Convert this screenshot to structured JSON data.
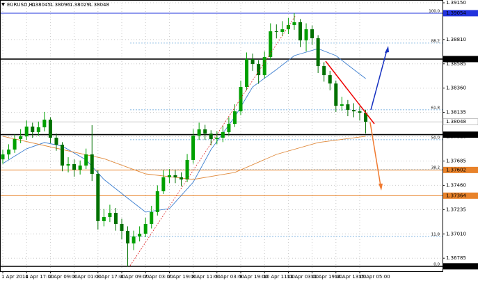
{
  "chart_data": {
    "type": "candlestick",
    "title": "EURUSD,H1",
    "header_values": [
      1.38045,
      1.38096,
      1.38029,
      1.38048
    ],
    "categories": [
      "1 Apr 2014",
      null,
      null,
      null,
      "1 Apr 17:00",
      null,
      null,
      null,
      "2 Apr 09:00",
      null,
      null,
      null,
      "3 Apr 01:00",
      null,
      null,
      null,
      "3 Apr 17:00",
      null,
      null,
      null,
      "4 Apr 09:00",
      null,
      null,
      null,
      "7 Apr 03:00",
      null,
      null,
      null,
      "7 Apr 19:00",
      null,
      null,
      null,
      "8 Apr 11:00",
      null,
      null,
      null,
      "9 Apr 03:00",
      null,
      null,
      null,
      "9 Apr 19:00",
      null,
      null,
      null,
      "10 Apr 11:00",
      null,
      null,
      null,
      "11 Apr 03:00",
      null,
      null,
      null,
      "11 Apr 19:00",
      null,
      null,
      null,
      "14 Apr 13:00",
      null,
      null,
      null,
      "15 Apr 05:00",
      null
    ],
    "open": [
      1.377,
      1.37746,
      1.37791,
      1.37888,
      1.37914,
      1.38004,
      1.37952,
      1.37997,
      1.38068,
      1.37901,
      1.37836,
      1.37643,
      1.37656,
      1.37604,
      1.37643,
      1.37746,
      1.37566,
      1.37128,
      1.37166,
      1.37205,
      1.37102,
      1.37038,
      1.36922,
      1.36986,
      1.37012,
      1.37102,
      1.37212,
      1.37405,
      1.37534,
      1.37553,
      1.37534,
      1.37514,
      1.37695,
      1.3792,
      1.37978,
      1.37939,
      1.37888,
      1.37901,
      1.37952,
      1.38029,
      1.38145,
      1.38371,
      1.38628,
      1.38583,
      1.3848,
      1.38648,
      1.38886,
      1.3888,
      1.38905,
      1.38944,
      1.3897,
      1.38802,
      1.38905,
      1.38822,
      1.38564,
      1.3848,
      1.38403,
      1.38197,
      1.3821,
      1.38158,
      1.38145,
      1.38132
    ],
    "high": [
      1.3779,
      1.3784,
      1.3793,
      1.3798,
      1.3806,
      1.3804,
      1.3805,
      1.3814,
      1.3809,
      1.3794,
      1.3786,
      1.3772,
      1.377,
      1.3769,
      1.378,
      1.38017,
      1.376,
      1.3724,
      1.3728,
      1.3725,
      1.3715,
      1.3708,
      1.3704,
      1.3708,
      1.3716,
      1.3727,
      1.3746,
      1.376,
      1.3761,
      1.376,
      1.3758,
      1.3775,
      1.3798,
      1.3804,
      1.3802,
      1.3797,
      1.3796,
      1.3801,
      1.3809,
      1.3821,
      1.3843,
      1.3869,
      1.3868,
      1.3862,
      1.387,
      1.3896,
      1.3895,
      1.3898,
      1.3901,
      1.39054,
      1.39,
      1.3896,
      1.3894,
      1.3885,
      1.386,
      1.3852,
      1.3843,
      1.3828,
      1.3825,
      1.3822,
      1.3819,
      1.3816
    ],
    "low": [
      1.3766,
      1.377,
      1.3776,
      1.3785,
      1.3788,
      1.379,
      1.3792,
      1.3796,
      1.3785,
      1.3778,
      1.3759,
      1.3758,
      1.3754,
      1.3756,
      1.3761,
      1.375,
      1.3705,
      1.3708,
      1.3712,
      1.3704,
      1.3696,
      1.3671,
      1.3686,
      1.3694,
      1.3698,
      1.3706,
      1.3718,
      1.3738,
      1.3748,
      1.3748,
      1.3745,
      1.3749,
      1.3766,
      1.3788,
      1.3788,
      1.3783,
      1.3784,
      1.3786,
      1.3792,
      1.38,
      1.3811,
      1.3834,
      1.3852,
      1.384,
      1.3845,
      1.3862,
      1.3882,
      1.3884,
      1.3886,
      1.389,
      1.3874,
      1.387,
      1.3876,
      1.385,
      1.3842,
      1.3834,
      1.3814,
      1.3815,
      1.381,
      1.3809,
      1.3806,
      1.3794
    ],
    "close": [
      1.37746,
      1.37791,
      1.37888,
      1.37914,
      1.38004,
      1.37952,
      1.37997,
      1.38068,
      1.37901,
      1.37836,
      1.37643,
      1.37656,
      1.37604,
      1.37643,
      1.37746,
      1.37566,
      1.37128,
      1.37166,
      1.37205,
      1.37102,
      1.37038,
      1.36922,
      1.36986,
      1.37012,
      1.37102,
      1.37212,
      1.37405,
      1.37534,
      1.37553,
      1.37534,
      1.37514,
      1.37695,
      1.3792,
      1.37978,
      1.37939,
      1.37888,
      1.37901,
      1.37952,
      1.38029,
      1.38145,
      1.38371,
      1.38628,
      1.38583,
      1.3848,
      1.38648,
      1.38886,
      1.3888,
      1.38905,
      1.38944,
      1.3897,
      1.38802,
      1.38905,
      1.38822,
      1.38564,
      1.3848,
      1.38403,
      1.38197,
      1.3821,
      1.38158,
      1.38145,
      1.38132,
      1.38048
    ],
    "bull_color": "#00a000",
    "bear_color": "#007000",
    "lines": [
      {
        "color": "#3d7fd0",
        "x": [
          0,
          4,
          7,
          10,
          14,
          17,
          21,
          24,
          28,
          32,
          35,
          39,
          42,
          46,
          49,
          53,
          56,
          59,
          61
        ],
        "values": [
          1.37662,
          1.37798,
          1.37856,
          1.37823,
          1.37695,
          1.37514,
          1.3734,
          1.37212,
          1.37244,
          1.37488,
          1.37791,
          1.38094,
          1.38371,
          1.38532,
          1.38661,
          1.38725,
          1.38661,
          1.38532,
          1.38448
        ]
      },
      {
        "color": "#e08a3c",
        "x": [
          0,
          10,
          17,
          24,
          32,
          39,
          46,
          53,
          61
        ],
        "values": [
          1.37914,
          1.37791,
          1.37707,
          1.37566,
          1.37514,
          1.37579,
          1.37746,
          1.37856,
          1.37914
        ]
      }
    ],
    "levels": [
      {
        "value": 1.39054,
        "color": "#2233dd"
      },
      {
        "value": 1.38629,
        "color": "#000000"
      },
      {
        "value": 1.37929,
        "color": "#000000"
      },
      {
        "value": 1.37602,
        "color": "#e8822a"
      },
      {
        "value": 1.37364,
        "color": "#e8822a"
      },
      {
        "value": 1.3671,
        "label": "1.36710",
        "color": "#000000"
      }
    ],
    "fib_color": "#5a9fd8",
    "fib": [
      {
        "value": 1.39054,
        "label": "100.0"
      },
      {
        "value": 1.38777,
        "label": "88.2"
      },
      {
        "value": 1.38159,
        "label": "61.8"
      },
      {
        "value": 1.37882,
        "label": "50.0"
      },
      {
        "value": 1.37605,
        "label": "38.2"
      },
      {
        "value": 1.36987,
        "label": "11.8"
      },
      {
        "value": 1.3671,
        "label": "0.0"
      }
    ],
    "ylim": [
      1.36664,
      1.39176
    ],
    "yticks": [
      {
        "value": 1.3915,
        "label": "1.39150"
      },
      {
        "value": 1.3881,
        "label": "1.38810"
      },
      1.38585,
      {
        "value": 1.3836,
        "label": "1.38360"
      },
      1.38135,
      {
        "value": 1.3791,
        "label": "1.37910"
      },
      1.37685,
      {
        "value": 1.3746,
        "label": "1.37460"
      },
      1.37235,
      {
        "value": 1.3701,
        "label": "1.37010"
      },
      1.36785
    ],
    "grid": true
  }
}
